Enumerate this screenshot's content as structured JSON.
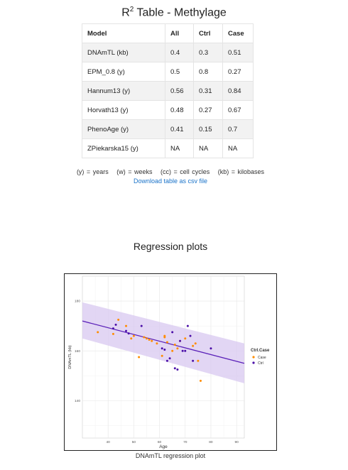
{
  "header": {
    "title_prefix": "R",
    "title_sup": "2",
    "title_rest": " Table - Methylage"
  },
  "table": {
    "columns": [
      "Model",
      "All",
      "Ctrl",
      "Case"
    ],
    "rows": [
      [
        "DNAmTL (kb)",
        "0.4",
        "0.3",
        "0.51"
      ],
      [
        "EPM_0.8 (y)",
        "0.5",
        "0.8",
        "0.27"
      ],
      [
        "Hannum13 (y)",
        "0.56",
        "0.31",
        "0.84"
      ],
      [
        "Horvath13 (y)",
        "0.48",
        "0.27",
        "0.67"
      ],
      [
        "PhenoAge (y)",
        "0.41",
        "0.15",
        "0.7"
      ],
      [
        "ZPiekarska15 (y)",
        "NA",
        "NA",
        "NA"
      ]
    ]
  },
  "units_legend": [
    "(y) = years",
    "(w) = weeks",
    "(cc) = cell cycles",
    "(kb) = kilobases"
  ],
  "download_link": "Download table as csv file",
  "section_title": "Regression plots",
  "caption": "DNAmTL regression plot",
  "chart_data": {
    "type": "scatter",
    "xlabel": "Age",
    "ylabel": "DNAmTL (kb)",
    "xlim": [
      30,
      93
    ],
    "ylim": [
      125,
      190
    ],
    "x_ticks": [
      40,
      50,
      60,
      70,
      80,
      90
    ],
    "y_ticks": [
      140,
      160,
      180
    ],
    "grid": true,
    "legend_title": "Ctrl.Case",
    "legend_position": "right",
    "colors": {
      "Case": "#ff8c00",
      "Ctrl": "#4b0fa8",
      "line": "#5a20b8",
      "band": "#d8c8f0"
    },
    "regression": {
      "x": [
        30,
        93
      ],
      "y": [
        172,
        155
      ],
      "band_lower": [
        165,
        147
      ],
      "band_upper": [
        179.5,
        163
      ]
    },
    "series": [
      {
        "name": "Case",
        "x": [
          36,
          42,
          44,
          47,
          49,
          50,
          52,
          54,
          55,
          56,
          57,
          59,
          61,
          62,
          62,
          63,
          65,
          66,
          67,
          68,
          70,
          73,
          74,
          75,
          76
        ],
        "y": [
          167.5,
          166.8,
          172.5,
          170,
          165,
          166,
          157.5,
          165.5,
          165,
          164.5,
          164,
          163,
          158,
          165.5,
          166,
          163.5,
          160,
          162.5,
          161,
          164,
          165,
          162,
          163,
          156,
          148
        ]
      },
      {
        "name": "Ctrl",
        "x": [
          42,
          43,
          47,
          48,
          53,
          61,
          62,
          63,
          64,
          65,
          66,
          67,
          68,
          69,
          70,
          71,
          72,
          73,
          80
        ],
        "y": [
          169,
          170.5,
          168,
          167,
          170,
          161,
          160.5,
          156,
          157,
          167.5,
          153,
          152.5,
          164,
          160,
          160,
          170,
          166,
          156,
          161
        ]
      }
    ]
  }
}
